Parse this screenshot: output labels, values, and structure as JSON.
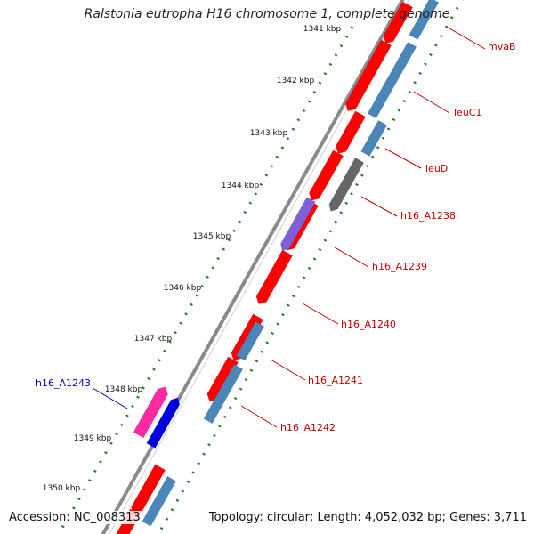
{
  "title": "Ralstonia eutropha H16 chromosome 1, complete genome",
  "footer": {
    "accession": "Accession: NC_008313",
    "summary": "Topology: circular; Length: 4,052,032 bp; Genes: 3,711"
  },
  "ruler": {
    "ticks": [
      "1341 kbp",
      "1342 kbp",
      "1343 kbp",
      "1344 kbp",
      "1345 kbp",
      "1346 kbp",
      "1347 kbp",
      "1348 kbp",
      "1349 kbp",
      "1350 kbp"
    ]
  },
  "genes": [
    {
      "name": "mvaB",
      "strand": "reverse",
      "color": "#d80000"
    },
    {
      "name": "leuC1",
      "strand": "reverse",
      "color": "#d80000"
    },
    {
      "name": "leuD",
      "strand": "reverse",
      "color": "#d80000"
    },
    {
      "name": "h16_A1238",
      "strand": "reverse",
      "color": "#666666"
    },
    {
      "name": "h16_A1239",
      "strand": "reverse",
      "color": "#8060d8"
    },
    {
      "name": "h16_A1240",
      "strand": "reverse",
      "color": "#d80000"
    },
    {
      "name": "h16_A1241",
      "strand": "reverse",
      "color": "#d80000"
    },
    {
      "name": "h16_A1242",
      "strand": "reverse",
      "color": "#d80000"
    },
    {
      "name": "h16_A1243",
      "strand": "forward",
      "color": "#0000e0"
    }
  ],
  "colors": {
    "backbone": "#8a8a8a",
    "cds_outer": "#ff0000",
    "cds_inner": "#4a86b8",
    "misc_pink": "#ff2aa0",
    "ruler_dots": "#1e7d1e",
    "label_red": "#c00000",
    "label_blue": "#0000c0"
  }
}
